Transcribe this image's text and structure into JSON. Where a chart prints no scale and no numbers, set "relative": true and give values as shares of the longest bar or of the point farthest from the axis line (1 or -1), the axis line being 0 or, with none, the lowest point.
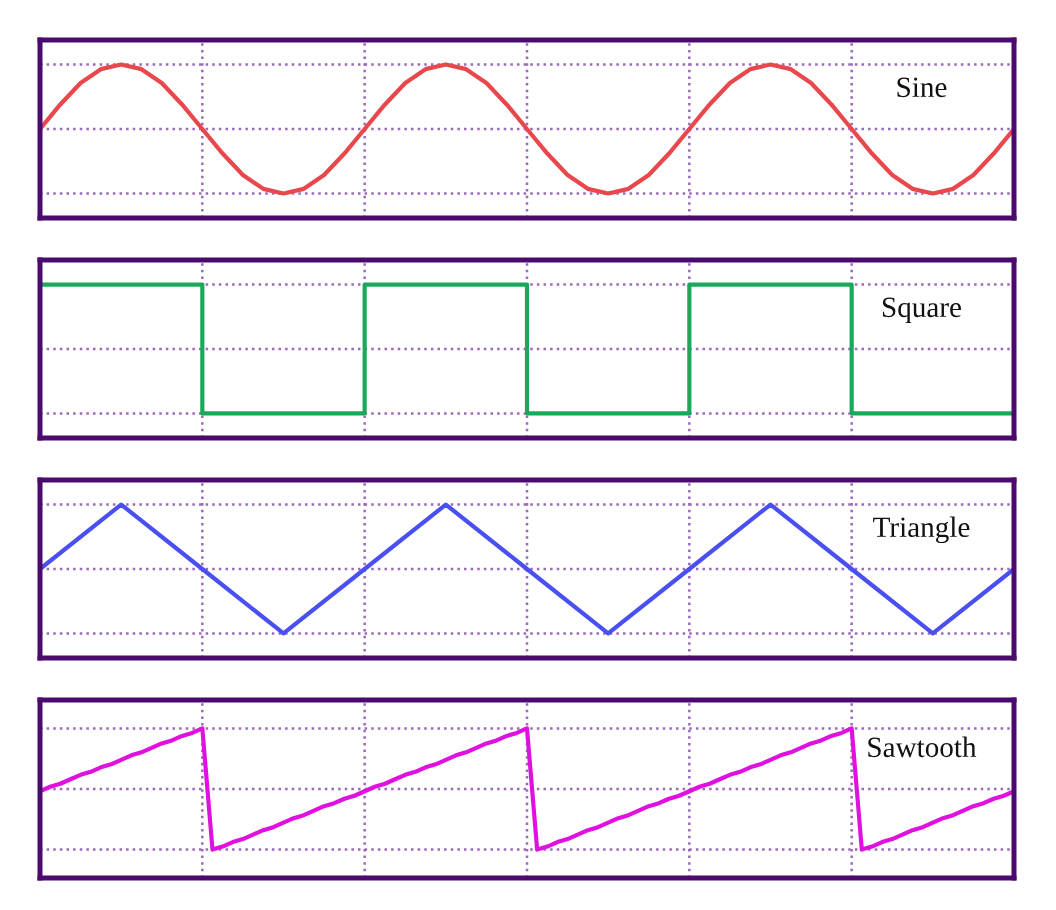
{
  "chart_data": [
    {
      "type": "line",
      "title": "Sine",
      "relative": true,
      "grid": true,
      "categories": [
        null,
        null,
        null,
        null,
        null,
        null,
        null,
        null,
        null,
        null,
        null,
        null,
        null,
        null,
        null,
        null,
        null,
        null,
        null,
        null,
        null,
        null,
        null,
        null,
        null,
        null,
        null,
        null,
        null,
        null,
        null,
        null,
        null,
        null,
        null,
        null,
        null,
        null,
        null,
        null,
        null,
        null,
        null,
        null,
        null,
        null,
        null,
        null,
        null
      ],
      "series": [
        {
          "color": "#e8474c",
          "values": [
            0.58,
            0.74,
            0.88,
            0.97,
            1,
            0.97,
            0.88,
            0.74,
            0.58,
            0.42,
            0.28,
            0.19,
            0.16,
            0.19,
            0.28,
            0.42,
            0.58,
            0.74,
            0.88,
            0.97,
            1,
            0.97,
            0.88,
            0.74,
            0.58,
            0.42,
            0.28,
            0.19,
            0.16,
            0.19,
            0.28,
            0.42,
            0.58,
            0.74,
            0.88,
            0.97,
            1,
            0.97,
            0.88,
            0.74,
            0.58,
            0.42,
            0.28,
            0.19,
            0.16,
            0.19,
            0.28,
            0.42,
            0.58
          ]
        }
      ]
    },
    {
      "type": "step",
      "title": "Square",
      "relative": true,
      "grid": true,
      "categories": [
        null,
        null,
        null,
        null,
        null,
        null,
        null
      ],
      "series": [
        {
          "color": "#1aa85a",
          "values": [
            1,
            0.16,
            1,
            0.16,
            1,
            0.16,
            0.16
          ]
        }
      ]
    },
    {
      "type": "line",
      "title": "Triangle",
      "relative": true,
      "grid": true,
      "categories": [
        null,
        null,
        null,
        null,
        null,
        null,
        null,
        null,
        null,
        null,
        null,
        null,
        null
      ],
      "series": [
        {
          "color": "#4a50f0",
          "values": [
            0.58,
            1,
            0.58,
            0.16,
            0.58,
            1,
            0.58,
            0.16,
            0.58,
            1,
            0.58,
            0.16,
            0.58
          ]
        }
      ]
    },
    {
      "type": "line",
      "title": "Sawtooth",
      "relative": true,
      "grid": true,
      "categories": [
        null,
        null,
        null,
        null,
        null,
        null,
        null,
        null,
        null,
        null,
        null,
        null,
        null,
        null,
        null,
        null,
        null,
        null,
        null,
        null,
        null,
        null,
        null,
        null,
        null,
        null,
        null,
        null,
        null,
        null,
        null,
        null,
        null,
        null,
        null,
        null,
        null,
        null,
        null,
        null,
        null,
        null,
        null,
        null,
        null,
        null,
        null,
        null,
        null,
        null,
        null,
        null,
        null,
        null,
        null,
        null,
        null,
        null,
        null,
        null,
        null,
        null,
        null,
        null,
        null,
        null,
        null,
        null,
        null,
        null,
        null,
        null,
        null,
        null,
        null,
        null,
        null,
        null,
        null,
        null,
        null,
        null,
        null,
        null,
        null,
        null,
        null,
        null,
        null,
        null,
        null,
        null,
        null,
        null,
        null,
        null,
        null
      ],
      "series": [
        {
          "color": "#e010e0",
          "values": [
            0.58,
            0.61,
            0.63,
            0.66,
            0.69,
            0.71,
            0.74,
            0.76,
            0.79,
            0.82,
            0.84,
            0.87,
            0.9,
            0.92,
            0.95,
            0.97,
            1,
            0.19,
            0.21,
            0.24,
            0.26,
            0.29,
            0.32,
            0.34,
            0.37,
            0.4,
            0.42,
            0.45,
            0.48,
            0.5,
            0.53,
            0.55,
            0.58,
            0.61,
            0.63,
            0.66,
            0.69,
            0.71,
            0.74,
            0.76,
            0.79,
            0.82,
            0.84,
            0.87,
            0.9,
            0.92,
            0.95,
            0.97,
            1,
            0.19,
            0.21,
            0.24,
            0.26,
            0.29,
            0.32,
            0.34,
            0.37,
            0.4,
            0.42,
            0.45,
            0.48,
            0.5,
            0.53,
            0.55,
            0.58,
            0.61,
            0.63,
            0.66,
            0.69,
            0.71,
            0.74,
            0.76,
            0.79,
            0.82,
            0.84,
            0.87,
            0.9,
            0.92,
            0.95,
            0.97,
            1,
            0.19,
            0.21,
            0.24,
            0.26,
            0.29,
            0.32,
            0.34,
            0.37,
            0.4,
            0.42,
            0.45,
            0.48,
            0.5,
            0.53,
            0.55,
            0.58
          ]
        }
      ]
    }
  ]
}
